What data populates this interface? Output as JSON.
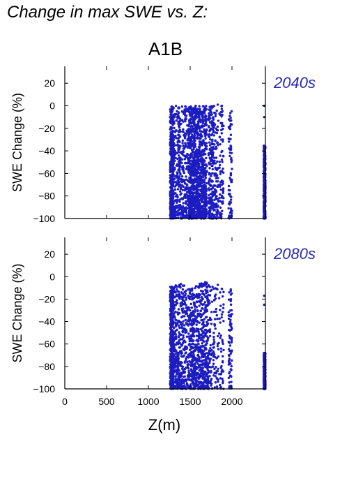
{
  "header": {
    "title": "Change in max SWE vs. Z:",
    "scenario": "A1B"
  },
  "colors": {
    "points": "#1c1cc0",
    "panel_label": "#2a2ab0",
    "axis": "#000000"
  },
  "chart_data": [
    {
      "type": "scatter",
      "panel_label": "2040s",
      "ylabel": "SWE Change (%)",
      "xlabel": "",
      "xlim": [
        0,
        2400
      ],
      "ylim": [
        -100,
        35
      ],
      "xticks": [
        0,
        500,
        1000,
        1500,
        2000
      ],
      "yticks": [
        20,
        0,
        -20,
        -40,
        -60,
        -80,
        -100
      ],
      "show_x_tick_labels": false,
      "clusters": [
        {
          "x": [
            1260,
            1300
          ],
          "y": [
            -100,
            0
          ],
          "density": "high"
        },
        {
          "x": [
            1300,
            1480
          ],
          "y": [
            -100,
            0
          ],
          "density": "high"
        },
        {
          "x": [
            1480,
            1560
          ],
          "y": [
            -100,
            0
          ],
          "density": "high"
        },
        {
          "x": [
            1560,
            1600
          ],
          "y": [
            -100,
            0
          ],
          "density": "medium"
        },
        {
          "x": [
            1600,
            1650
          ],
          "y": [
            -100,
            0
          ],
          "density": "medium"
        },
        {
          "x": [
            1650,
            1700
          ],
          "y": [
            -100,
            0
          ],
          "density": "medium"
        },
        {
          "x": [
            1720,
            1790
          ],
          "y": [
            -100,
            0
          ],
          "density": "medium"
        },
        {
          "x": [
            1790,
            1840
          ],
          "y": [
            -100,
            0
          ],
          "density": "low"
        },
        {
          "x": [
            1850,
            1900
          ],
          "y": [
            -100,
            0
          ],
          "density": "low"
        },
        {
          "x": [
            1960,
            2000
          ],
          "y": [
            -100,
            0
          ],
          "density": "low"
        },
        {
          "x": [
            2380,
            2400
          ],
          "y": [
            -100,
            -35
          ],
          "density": "high"
        }
      ],
      "points": [
        {
          "x": 2385,
          "y": 0
        },
        {
          "x": 2385,
          "y": -10
        },
        {
          "x": 1830,
          "y": 1
        },
        {
          "x": 1880,
          "y": 0
        }
      ]
    },
    {
      "type": "scatter",
      "panel_label": "2080s",
      "ylabel": "SWE Change (%)",
      "xlabel": "Z(m)",
      "xlim": [
        0,
        2400
      ],
      "ylim": [
        -100,
        35
      ],
      "xticks": [
        0,
        500,
        1000,
        1500,
        2000
      ],
      "yticks": [
        20,
        0,
        -20,
        -40,
        -60,
        -80,
        -100
      ],
      "show_x_tick_labels": true,
      "clusters": [
        {
          "x": [
            1260,
            1300
          ],
          "y": [
            -100,
            -8
          ],
          "density": "high"
        },
        {
          "x": [
            1300,
            1480
          ],
          "y": [
            -100,
            -6
          ],
          "density": "high"
        },
        {
          "x": [
            1480,
            1560
          ],
          "y": [
            -100,
            -10
          ],
          "density": "medium"
        },
        {
          "x": [
            1560,
            1650
          ],
          "y": [
            -100,
            -6
          ],
          "density": "medium"
        },
        {
          "x": [
            1650,
            1720
          ],
          "y": [
            -100,
            -5
          ],
          "density": "medium"
        },
        {
          "x": [
            1720,
            1800
          ],
          "y": [
            -100,
            -8
          ],
          "density": "low"
        },
        {
          "x": [
            1800,
            1900
          ],
          "y": [
            -100,
            -7
          ],
          "density": "low"
        },
        {
          "x": [
            1960,
            2000
          ],
          "y": [
            -100,
            -10
          ],
          "density": "low"
        },
        {
          "x": [
            2380,
            2400
          ],
          "y": [
            -100,
            -68
          ],
          "density": "high"
        }
      ],
      "points": [
        {
          "x": 2385,
          "y": -17
        },
        {
          "x": 2385,
          "y": -25
        },
        {
          "x": 1680,
          "y": -5
        }
      ]
    }
  ]
}
